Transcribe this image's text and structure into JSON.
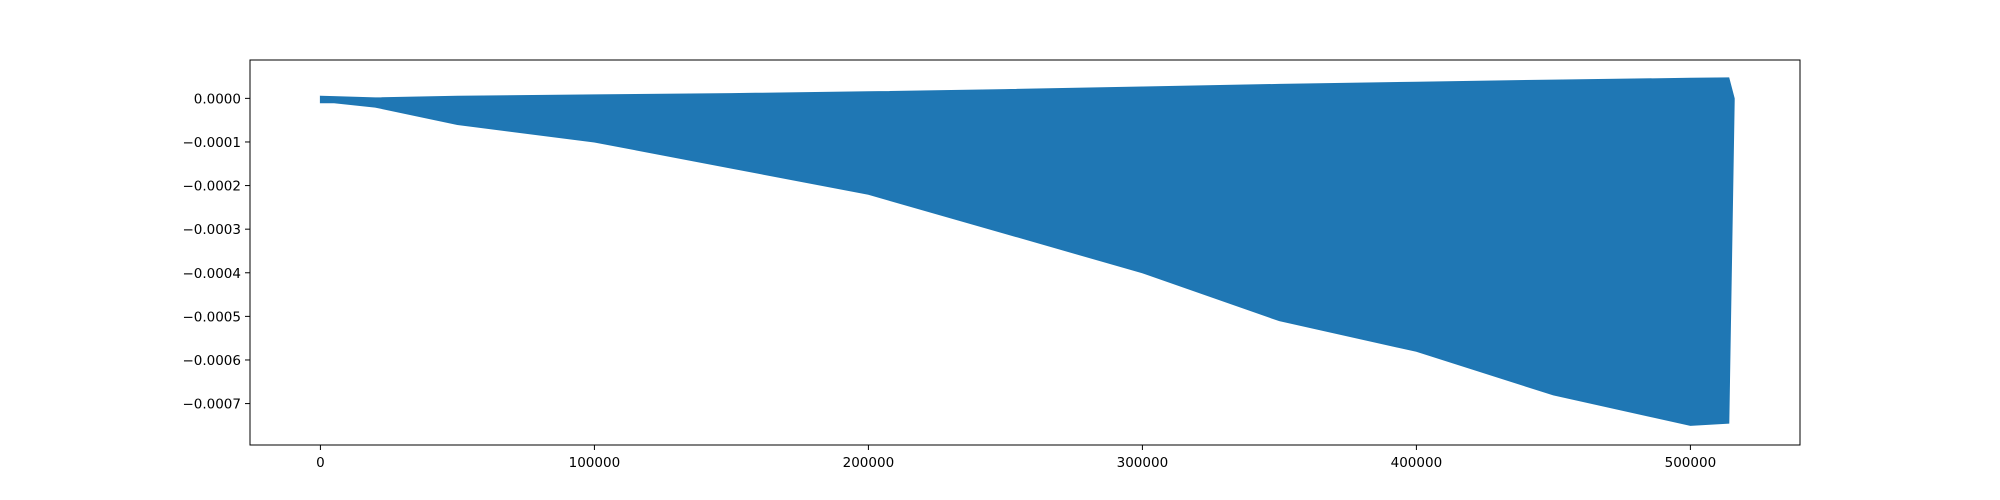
{
  "chart_data": {
    "type": "area",
    "title": "",
    "xlabel": "",
    "ylabel": "",
    "xlim": [
      -25700,
      540000
    ],
    "ylim": [
      -0.000795,
      8.8e-05
    ],
    "x_ticks": [
      0,
      100000,
      200000,
      300000,
      400000,
      500000
    ],
    "x_tick_labels": [
      "0",
      "100000",
      "200000",
      "300000",
      "400000",
      "500000"
    ],
    "y_ticks": [
      0.0,
      -0.0001,
      -0.0002,
      -0.0003,
      -0.0004,
      -0.0005,
      -0.0006,
      -0.0007
    ],
    "y_tick_labels": [
      "0.0000",
      "−0.0001",
      "−0.0002",
      "−0.0003",
      "−0.0004",
      "−0.0005",
      "−0.0006",
      "−0.0007"
    ],
    "grid": false,
    "legend": "none",
    "series": [
      {
        "color": "#1f77b4",
        "upper_envelope": {
          "x": [
            0,
            5000,
            20000,
            50000,
            100000,
            150000,
            200000,
            250000,
            300000,
            350000,
            400000,
            450000,
            500000,
            514000,
            516000
          ],
          "y": [
            5e-06,
            4e-06,
            1e-06,
            5e-06,
            8e-06,
            1.1e-05,
            1.5e-05,
            2e-05,
            2.6e-05,
            3.2e-05,
            3.7e-05,
            4.2e-05,
            4.6e-05,
            4.7e-05,
            0.0
          ]
        },
        "lower_envelope": {
          "x": [
            0,
            5000,
            20000,
            50000,
            100000,
            150000,
            200000,
            250000,
            300000,
            350000,
            400000,
            450000,
            500000,
            514000,
            516000
          ],
          "y": [
            -1e-05,
            -1e-05,
            -2e-05,
            -6e-05,
            -0.0001,
            -0.00016,
            -0.00022,
            -0.00031,
            -0.0004,
            -0.00051,
            -0.00058,
            -0.00068,
            -0.00075,
            -0.000745,
            -5e-06
          ]
        }
      }
    ]
  }
}
